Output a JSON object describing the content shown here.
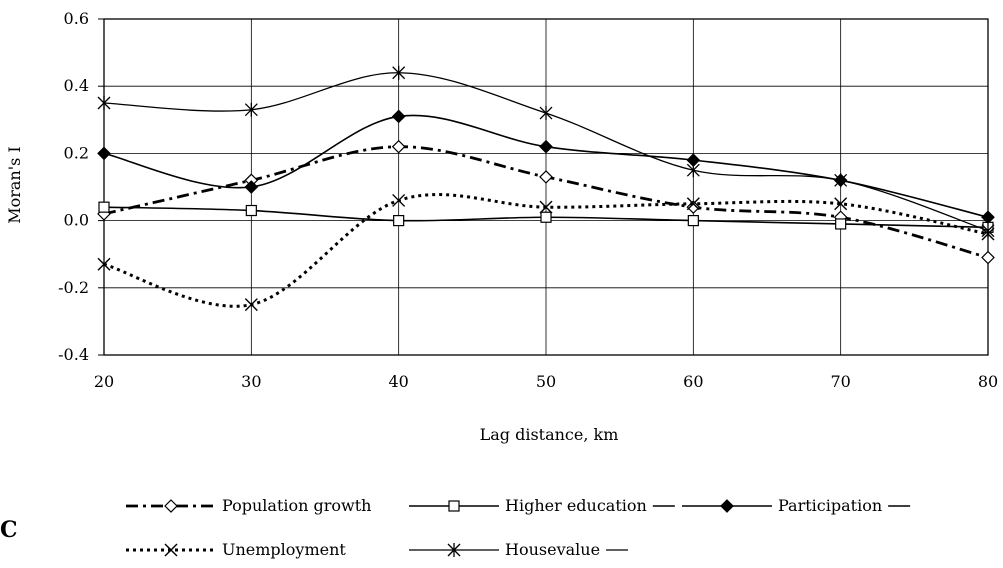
{
  "panel_label": "C",
  "chart_data": {
    "type": "line",
    "title": "",
    "xlabel": "Lag distance, km",
    "ylabel": "Moran's I",
    "xlim": [
      20,
      80
    ],
    "ylim": [
      -0.4,
      0.6
    ],
    "x_ticks": [
      "20",
      "30",
      "40",
      "50",
      "60",
      "70",
      "80"
    ],
    "y_ticks": [
      "-0.4",
      "-0.2",
      "0.0",
      "0.2",
      "0.4",
      "0.6"
    ],
    "grid": "vertical and horizontal at ticks",
    "legend_position": "bottom",
    "colors": {
      "line": "#000000",
      "grid": "#000000"
    },
    "x": [
      20,
      30,
      40,
      50,
      60,
      70,
      80
    ],
    "series": [
      {
        "name": "Population growth",
        "marker": "diamond-open",
        "dash": "dash-dot",
        "values": [
          0.02,
          0.12,
          0.22,
          0.13,
          0.04,
          0.01,
          -0.11
        ]
      },
      {
        "name": "Higher education",
        "marker": "square-open",
        "dash": "solid",
        "values": [
          0.04,
          0.03,
          0.0,
          0.01,
          0.0,
          -0.01,
          -0.02
        ]
      },
      {
        "name": "Participation",
        "marker": "diamond-filled",
        "dash": "solid",
        "values": [
          0.2,
          0.1,
          0.31,
          0.22,
          0.18,
          0.12,
          0.01
        ]
      },
      {
        "name": "Unemployment",
        "marker": "x",
        "dash": "dotted",
        "values": [
          -0.13,
          -0.25,
          0.06,
          0.04,
          0.05,
          0.05,
          -0.04
        ]
      },
      {
        "name": "Housevalue",
        "marker": "asterisk",
        "dash": "solid-thin",
        "values": [
          0.35,
          0.33,
          0.44,
          0.32,
          0.15,
          0.12,
          -0.03
        ]
      }
    ]
  }
}
